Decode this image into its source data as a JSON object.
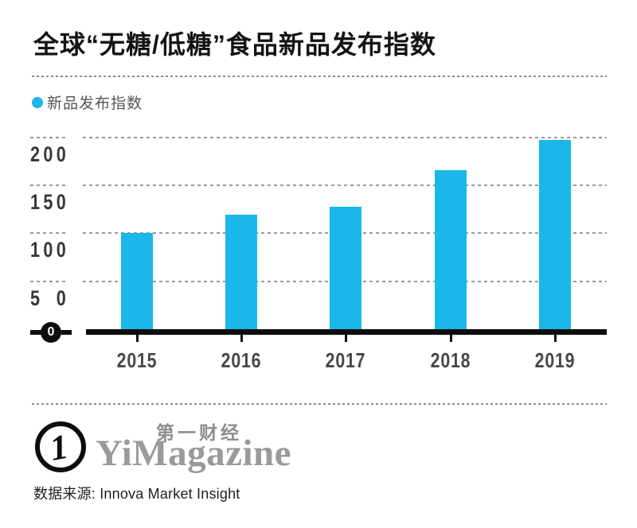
{
  "header": {
    "title": "全球“无糖/低糖”食品新品发布指数"
  },
  "legend": {
    "label": "新品发布指数"
  },
  "chart_data": {
    "type": "bar",
    "title": "全球“无糖/低糖”食品新品发布指数",
    "categories": [
      "2015",
      "2016",
      "2017",
      "2018",
      "2019"
    ],
    "series": [
      {
        "name": "新品发布指数",
        "values": [
          100,
          119,
          128,
          166,
          197
        ]
      }
    ],
    "xlabel": "",
    "ylabel": "",
    "ylim": [
      0,
      210
    ],
    "yticks": [
      50,
      100,
      150,
      200
    ],
    "zero_label": "0",
    "grid": "dashed-horizontal",
    "legend_position": "top-left",
    "bar_color": "#1ab7e8"
  },
  "footer": {
    "logo_numeral": "1",
    "brand_cn": "第一财经",
    "brand_en": "YiMagazine",
    "source": "数据来源: Innova Market Insight"
  },
  "colors": {
    "bar": "#1ab7e8",
    "grid_line": "#9a9a9a",
    "axis": "#0d0d0d",
    "title_text": "#141414",
    "tick_text": "#383838",
    "brand_gray": "#9a9a9a"
  }
}
